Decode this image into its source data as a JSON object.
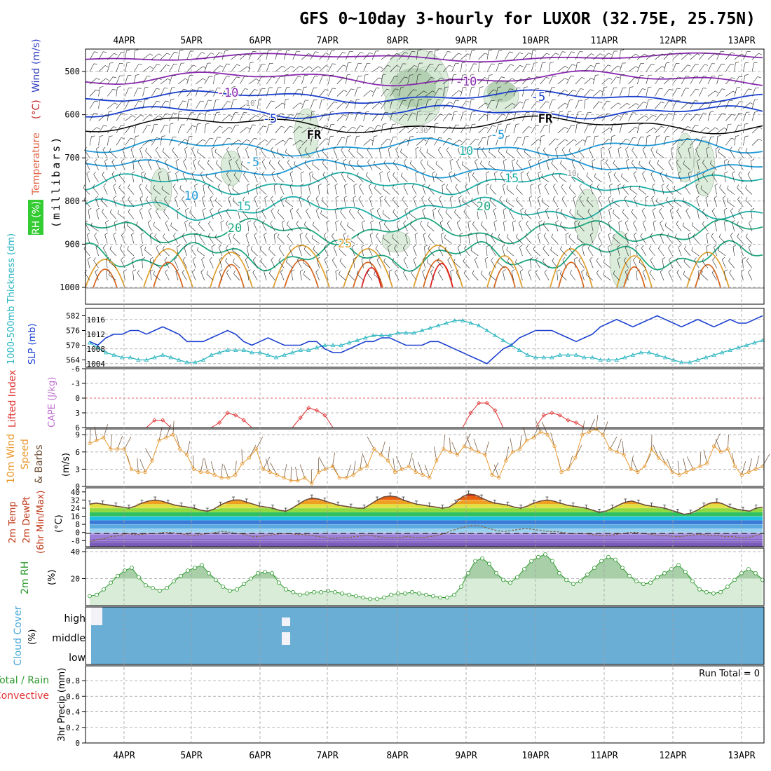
{
  "header": {
    "title": "GFS 0~10day 3-hourly for LUXOR (32.75E, 25.75N)"
  },
  "dates": [
    "4APR",
    "5APR",
    "6APR",
    "7APR",
    "8APR",
    "9APR",
    "10APR",
    "11APR",
    "12APR",
    "13APR"
  ],
  "colors": {
    "frame": "#000000",
    "grid": "#a0a0a0",
    "slp": "#1a3fd0",
    "thickness": "#2ab5c0",
    "lifted": "#e03030",
    "cape": "#c070d0",
    "wind10m": "#e89a30",
    "barb": "#6a4a30",
    "rh2m_line": "#2e9a2e",
    "rh2m_fill": "#d8ecd8",
    "rh2m_fill_dark": "#a8cfa8",
    "cloud": "#6aaed6",
    "temp_curve": "#6a4a3a",
    "dewpt_curve": "#8a6a4a",
    "purple": "#8a2ab0",
    "blue": "#1a3fd0",
    "sky": "#1e9ad8",
    "teal": "#20b0a8",
    "green": "#20a880",
    "orange": "#e0a030",
    "dkorange": "#d86820",
    "red": "#e02020",
    "freeze": "#000000"
  },
  "upper_panel": {
    "ylabel_words": [
      "Wind",
      "(m/s)",
      "(°C)",
      "Temperature",
      "RH",
      "(%)"
    ],
    "pressure_label": "(millibars)",
    "levels": [
      "500",
      "600",
      "700",
      "800",
      "900",
      "1000"
    ],
    "contour_labels": [
      {
        "text": "-10",
        "color": "purple"
      },
      {
        "text": "-10",
        "color": "purple"
      },
      {
        "text": "-5",
        "color": "blue"
      },
      {
        "text": "-5",
        "color": "blue"
      },
      {
        "text": "FR",
        "color": "freeze"
      },
      {
        "text": "FR",
        "color": "freeze"
      },
      {
        "text": "-5",
        "color": "sky"
      },
      {
        "text": "-5",
        "color": "sky"
      },
      {
        "text": "10",
        "color": "sky"
      },
      {
        "text": "10",
        "color": "teal"
      },
      {
        "text": "15",
        "color": "teal"
      },
      {
        "text": "15",
        "color": "teal"
      },
      {
        "text": "20",
        "color": "green"
      },
      {
        "text": "20",
        "color": "green"
      },
      {
        "text": "25",
        "color": "orange"
      },
      {
        "text": "10",
        "color": "gray"
      },
      {
        "text": "30",
        "color": "gray"
      },
      {
        "text": "10",
        "color": "gray"
      }
    ]
  },
  "slp_panel": {
    "label_thickness": "1000-500mb Thickness (dm)",
    "label_slp": "SLP (mb)",
    "thickness_ticks": [
      "582",
      "576",
      "570",
      "564"
    ],
    "slp_ticks": [
      "1016",
      "1012",
      "1008",
      "1004"
    ],
    "thickness_range": [
      561,
      585
    ],
    "slp_range": [
      1003,
      1019
    ],
    "thickness_dm": [
      571,
      569,
      567,
      566,
      565,
      565,
      564,
      564,
      565,
      566,
      565,
      564,
      563,
      563,
      564,
      566,
      567,
      568,
      568,
      568,
      567,
      567,
      566,
      565,
      566,
      567,
      568,
      568,
      569,
      570,
      570,
      570,
      571,
      572,
      573,
      574,
      574,
      574,
      575,
      575,
      575,
      576,
      577,
      578,
      579,
      580,
      580,
      579,
      578,
      576,
      574,
      572,
      570,
      568,
      566,
      565,
      565,
      565,
      566,
      566,
      566,
      565,
      565,
      564,
      564,
      564,
      565,
      566,
      567,
      567,
      566,
      565,
      564,
      563,
      563,
      564,
      565,
      566,
      567,
      568,
      569,
      570,
      571,
      572
    ],
    "slp_mb": [
      1010,
      1009,
      1011,
      1012,
      1012,
      1013,
      1013,
      1012,
      1013,
      1014,
      1013,
      1012,
      1010,
      1010,
      1010,
      1011,
      1012,
      1013,
      1012,
      1010,
      1009,
      1010,
      1011,
      1010,
      1009,
      1009,
      1009,
      1010,
      1010,
      1008,
      1007,
      1007,
      1008,
      1009,
      1010,
      1010,
      1011,
      1011,
      1010,
      1009,
      1009,
      1009,
      1010,
      1010,
      1009,
      1008,
      1007,
      1006,
      1005,
      1004,
      1006,
      1008,
      1009,
      1011,
      1012,
      1013,
      1013,
      1013,
      1012,
      1011,
      1010,
      1011,
      1012,
      1014,
      1015,
      1016,
      1015,
      1014,
      1015,
      1016,
      1017,
      1016,
      1015,
      1014,
      1015,
      1016,
      1015,
      1014,
      1015,
      1016,
      1015,
      1015,
      1016,
      1017
    ]
  },
  "cape_panel": {
    "label_li": "Lifted Index",
    "label_cape": "CAPE (J/kg)",
    "li_ticks": [
      "-6",
      "-3",
      "0",
      "3",
      "6"
    ],
    "li_range": [
      -6,
      6
    ],
    "lifted_index": [
      null,
      null,
      null,
      null,
      null,
      null,
      6,
      6,
      4.5,
      4.5,
      6,
      6,
      null,
      null,
      6,
      6,
      5,
      3,
      3.5,
      4.5,
      6,
      6,
      6,
      null,
      null,
      6,
      4,
      2,
      2.5,
      3.5,
      6,
      6,
      null,
      null,
      null,
      null,
      null,
      null,
      null,
      null,
      null,
      null,
      null,
      null,
      null,
      null,
      6,
      3,
      1,
      1,
      2.5,
      6,
      6,
      null,
      null,
      6,
      3.5,
      3,
      3.5,
      4.5,
      5,
      6,
      null,
      null,
      null,
      null,
      null,
      null,
      null,
      null,
      null,
      null,
      null,
      null,
      null,
      null,
      null,
      null,
      null,
      null,
      null,
      null,
      null,
      null
    ]
  },
  "wind_panel": {
    "label_main": "10m Wind",
    "label_speed": "Speed",
    "label_barbs": "& Barbs",
    "label_units": "(m/s)",
    "ticks": [
      "0",
      "3",
      "6",
      "9"
    ],
    "range": [
      0,
      10
    ],
    "speed_ms": [
      7.5,
      8,
      8.5,
      6.5,
      6.5,
      6.5,
      3,
      2.5,
      2.5,
      4.5,
      8,
      8.5,
      9,
      6.5,
      5.5,
      3,
      2.5,
      2.5,
      2,
      1.5,
      1.5,
      2,
      4,
      5,
      6.5,
      3,
      2.5,
      2,
      1.5,
      1,
      1,
      1.5,
      0.5,
      2.5,
      3,
      3.5,
      1.5,
      1.5,
      2,
      3,
      3.5,
      6.5,
      5.5,
      4.5,
      2.5,
      3,
      3.5,
      2.5,
      2,
      1.5,
      4.5,
      6.5,
      6,
      5.5,
      7,
      6.5,
      6,
      5.5,
      2,
      1.5,
      4.5,
      6,
      6.5,
      8,
      8.5,
      9.5,
      9,
      7,
      2.5,
      3,
      5,
      9,
      9.5,
      10,
      9,
      6.5,
      6,
      5.5,
      3,
      2.5,
      3.5,
      6.5,
      5,
      4,
      2.5,
      2,
      2.5,
      3,
      3.5,
      4,
      7,
      6,
      6.5,
      3.5,
      2,
      2.5,
      3,
      3.5
    ]
  },
  "temp_panel": {
    "label_1": "2m Temp",
    "label_2": "2m DewPt",
    "label_3": "(6hr Min/Max)",
    "label_units": "(°C)",
    "ticks": [
      "40",
      "32",
      "24",
      "16",
      "8",
      "0",
      "-8"
    ],
    "range": [
      -14,
      44
    ],
    "temp_c": [
      28,
      29,
      28,
      27,
      26,
      25,
      24,
      26,
      29,
      31,
      32,
      31,
      29,
      27,
      26,
      25,
      24,
      22,
      21,
      23,
      27,
      30,
      32,
      32,
      30,
      28,
      26,
      25,
      24,
      22,
      21,
      24,
      28,
      32,
      34,
      33,
      31,
      29,
      27,
      26,
      25,
      24,
      24,
      28,
      32,
      35,
      36,
      35,
      32,
      30,
      28,
      27,
      26,
      25,
      24,
      25,
      29,
      35,
      38,
      37,
      34,
      31,
      29,
      28,
      27,
      25,
      24,
      26,
      29,
      31,
      32,
      31,
      29,
      27,
      26,
      25,
      24,
      22,
      20,
      21,
      24,
      27,
      30,
      31,
      29,
      27,
      26,
      25,
      24,
      22,
      20,
      18,
      19,
      22,
      26,
      29,
      30,
      28,
      25,
      23,
      22,
      21,
      24,
      25
    ],
    "dewpt_c": [
      -9,
      -7,
      -6,
      -4,
      -3,
      -1,
      -2,
      -2,
      -1,
      -1,
      0,
      0,
      -1,
      -2,
      -3,
      -2,
      -1,
      0,
      1,
      0,
      -1,
      -2,
      -4,
      -4,
      -3,
      -2,
      -1,
      -1,
      -2,
      -2,
      -3,
      -4,
      -5,
      -6,
      -5,
      -5,
      -4,
      -3,
      -3,
      -4,
      -5,
      -5,
      -5,
      -4,
      -5,
      -5,
      -4,
      -3,
      -1,
      2,
      4,
      6,
      7,
      6,
      4,
      2,
      1,
      2,
      3,
      4,
      3,
      2,
      1,
      1,
      0,
      -1,
      -1,
      -1,
      -2,
      -3,
      -3,
      -2,
      -1,
      0,
      0,
      -1,
      -2,
      -3,
      -3,
      -4,
      -4,
      -3,
      -2,
      -2,
      -3,
      -3,
      -4,
      -4,
      -5,
      -5,
      -3,
      -1
    ]
  },
  "rh_panel": {
    "label_main": "2m RH",
    "label_units": "(%)",
    "ticks": [
      "40",
      "20"
    ],
    "range": [
      0,
      40
    ],
    "rh_pct": [
      7,
      8,
      12,
      17,
      22,
      26,
      28,
      21,
      15,
      13,
      11,
      13,
      18,
      22,
      26,
      28,
      30,
      24,
      19,
      14,
      11,
      12,
      16,
      20,
      24,
      25,
      24,
      17,
      12,
      10,
      8,
      9,
      10,
      10,
      11,
      10,
      9,
      8,
      7,
      6,
      5,
      5,
      6,
      8,
      9,
      9,
      10,
      9,
      8,
      7,
      6,
      6,
      8,
      14,
      24,
      33,
      35,
      31,
      24,
      19,
      17,
      21,
      27,
      33,
      36,
      38,
      33,
      24,
      19,
      16,
      18,
      23,
      28,
      33,
      36,
      34,
      28,
      22,
      18,
      16,
      17,
      21,
      24,
      27,
      30,
      25,
      18,
      12,
      10,
      9,
      10,
      14,
      19,
      24,
      27,
      24,
      19
    ]
  },
  "cloud_panel": {
    "label_main": "Cloud Cover",
    "label_units": "(%)",
    "levels": [
      "high",
      "middle",
      "low"
    ]
  },
  "precip_panel": {
    "label_top": "Total / Rain",
    "label_conv": "Convective",
    "label_main": "3hr Precip (mm)",
    "run_total": "Run Total = 0",
    "ticks": [
      "0.8",
      "0.6",
      "0.4",
      "0.2",
      "0"
    ]
  }
}
